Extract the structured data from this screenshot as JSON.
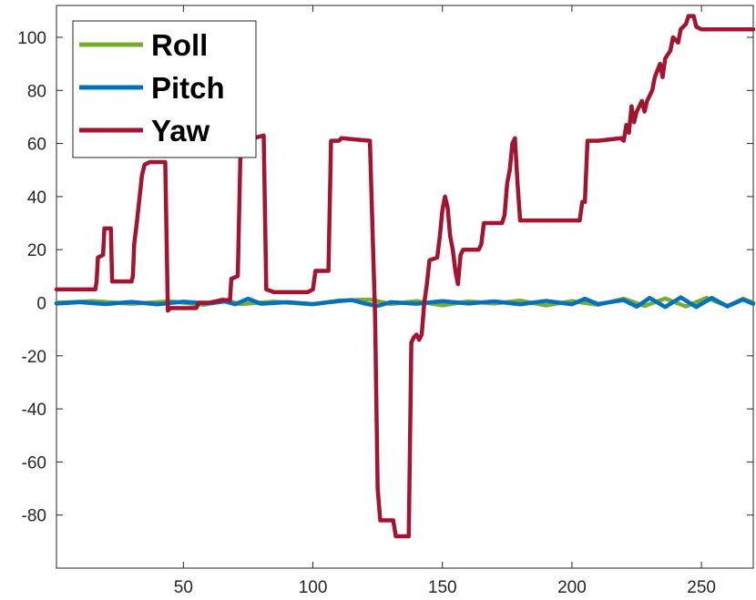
{
  "chart_data": {
    "type": "line",
    "title": "",
    "xlabel": "",
    "ylabel": "",
    "xlim": [
      1,
      270
    ],
    "ylim": [
      -100,
      112
    ],
    "xticks": [
      50,
      100,
      150,
      200,
      250
    ],
    "yticks": [
      -80,
      -60,
      -40,
      -20,
      0,
      20,
      40,
      60,
      80,
      100
    ],
    "grid": false,
    "legend": "top-left",
    "series": [
      {
        "name": "Roll",
        "color": "#77AC30",
        "points": [
          [
            1,
            0
          ],
          [
            15,
            0.6
          ],
          [
            30,
            -0.4
          ],
          [
            45,
            0.5
          ],
          [
            58,
            -0.8
          ],
          [
            65,
            1.2
          ],
          [
            72,
            -0.5
          ],
          [
            85,
            0.4
          ],
          [
            100,
            -0.6
          ],
          [
            110,
            0.8
          ],
          [
            122,
            1.2
          ],
          [
            130,
            -0.5
          ],
          [
            140,
            0.6
          ],
          [
            150,
            -1.0
          ],
          [
            160,
            0.5
          ],
          [
            170,
            -0.3
          ],
          [
            180,
            0.8
          ],
          [
            190,
            -1.0
          ],
          [
            200,
            0.6
          ],
          [
            210,
            -0.8
          ],
          [
            220,
            1.5
          ],
          [
            228,
            -1.2
          ],
          [
            236,
            1.6
          ],
          [
            244,
            -1.4
          ],
          [
            252,
            1.8
          ],
          [
            260,
            -1.2
          ],
          [
            266,
            1.5
          ],
          [
            270,
            0
          ]
        ]
      },
      {
        "name": "Pitch",
        "color": "#0072BD",
        "points": [
          [
            1,
            -0.3
          ],
          [
            10,
            0.2
          ],
          [
            20,
            -0.5
          ],
          [
            30,
            0.3
          ],
          [
            40,
            -0.6
          ],
          [
            50,
            0.4
          ],
          [
            60,
            -0.3
          ],
          [
            66,
            0.5
          ],
          [
            70,
            -0.6
          ],
          [
            75,
            1.5
          ],
          [
            80,
            -0.4
          ],
          [
            90,
            0.2
          ],
          [
            100,
            -0.5
          ],
          [
            110,
            0.6
          ],
          [
            115,
            1.0
          ],
          [
            120,
            -0.3
          ],
          [
            125,
            -1.2
          ],
          [
            130,
            0.2
          ],
          [
            140,
            -0.4
          ],
          [
            150,
            0.6
          ],
          [
            160,
            -0.3
          ],
          [
            170,
            0.5
          ],
          [
            180,
            -0.6
          ],
          [
            190,
            0.7
          ],
          [
            200,
            -0.6
          ],
          [
            205,
            1.5
          ],
          [
            210,
            -0.5
          ],
          [
            220,
            1.0
          ],
          [
            225,
            -1.5
          ],
          [
            230,
            1.8
          ],
          [
            236,
            -1.6
          ],
          [
            242,
            2.0
          ],
          [
            248,
            -1.6
          ],
          [
            254,
            1.8
          ],
          [
            260,
            -1.4
          ],
          [
            266,
            1.2
          ],
          [
            270,
            -0.4
          ]
        ]
      },
      {
        "name": "Yaw",
        "color": "#A2142F",
        "points": [
          [
            1,
            5
          ],
          [
            16,
            5
          ],
          [
            16.5,
            8
          ],
          [
            17,
            17
          ],
          [
            19,
            18
          ],
          [
            19.5,
            28
          ],
          [
            22,
            28
          ],
          [
            22.5,
            8
          ],
          [
            30,
            8
          ],
          [
            30.5,
            10
          ],
          [
            31,
            22
          ],
          [
            32,
            30
          ],
          [
            34,
            48
          ],
          [
            35,
            52
          ],
          [
            37,
            53
          ],
          [
            43,
            53
          ],
          [
            44,
            -3
          ],
          [
            45,
            -2
          ],
          [
            47,
            -2
          ],
          [
            55,
            -2
          ],
          [
            56,
            0
          ],
          [
            60,
            0
          ],
          [
            65,
            1
          ],
          [
            68,
            1
          ],
          [
            68.5,
            9
          ],
          [
            71,
            10
          ],
          [
            72,
            55
          ],
          [
            73,
            63
          ],
          [
            74,
            63
          ],
          [
            77,
            62
          ],
          [
            81,
            63
          ],
          [
            82,
            5
          ],
          [
            85,
            4
          ],
          [
            98,
            4
          ],
          [
            100,
            5
          ],
          [
            101,
            12
          ],
          [
            106,
            12
          ],
          [
            107,
            61
          ],
          [
            110,
            61
          ],
          [
            111,
            62
          ],
          [
            122,
            61
          ],
          [
            124,
            -5
          ],
          [
            125,
            -70
          ],
          [
            126,
            -82
          ],
          [
            131,
            -82
          ],
          [
            132,
            -88
          ],
          [
            137,
            -88
          ],
          [
            138,
            -15
          ],
          [
            139,
            -13
          ],
          [
            140,
            -12
          ],
          [
            141,
            -14
          ],
          [
            142,
            -12
          ],
          [
            143,
            0
          ],
          [
            144,
            7
          ],
          [
            145,
            16
          ],
          [
            148,
            17
          ],
          [
            149,
            25
          ],
          [
            150,
            35
          ],
          [
            151,
            40
          ],
          [
            152,
            36
          ],
          [
            153,
            25
          ],
          [
            154,
            20
          ],
          [
            155,
            12
          ],
          [
            156,
            7
          ],
          [
            157,
            18
          ],
          [
            158,
            20
          ],
          [
            164,
            20
          ],
          [
            165,
            22
          ],
          [
            166,
            30
          ],
          [
            173,
            30
          ],
          [
            174,
            33
          ],
          [
            175,
            45
          ],
          [
            176,
            50
          ],
          [
            177,
            60
          ],
          [
            178,
            62
          ],
          [
            179,
            45
          ],
          [
            180,
            31
          ],
          [
            193,
            31
          ],
          [
            203,
            31
          ],
          [
            204,
            38
          ],
          [
            205,
            38
          ],
          [
            206,
            61
          ],
          [
            210,
            61
          ],
          [
            219,
            62
          ],
          [
            220,
            61
          ],
          [
            221,
            67
          ],
          [
            222,
            64
          ],
          [
            223,
            74
          ],
          [
            224,
            68
          ],
          [
            225,
            72
          ],
          [
            227,
            76
          ],
          [
            228,
            72
          ],
          [
            229,
            76
          ],
          [
            231,
            80
          ],
          [
            232,
            85
          ],
          [
            234,
            90
          ],
          [
            235,
            85
          ],
          [
            236,
            92
          ],
          [
            238,
            95
          ],
          [
            239,
            100
          ],
          [
            241,
            98
          ],
          [
            242,
            103
          ],
          [
            244,
            105
          ],
          [
            245,
            108
          ],
          [
            247,
            108
          ],
          [
            248,
            104
          ],
          [
            250,
            103
          ],
          [
            270,
            103
          ]
        ]
      }
    ]
  }
}
